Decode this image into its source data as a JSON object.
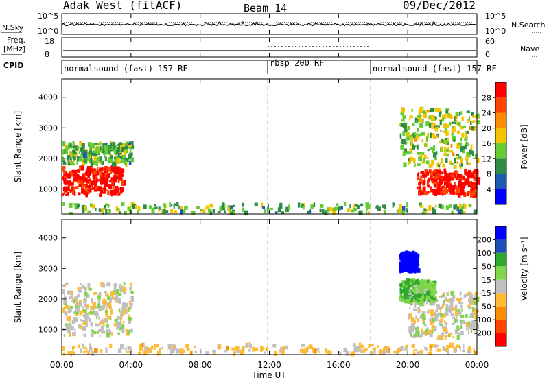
{
  "header": {
    "station": "Adak West (fitACF)",
    "beam": "Beam 14",
    "date": "09/Dec/2012"
  },
  "top_panels": {
    "nsky_label": "N.Sky",
    "nsky_ticks": [
      "10^5",
      "10^0"
    ],
    "nsearch_label": "N.Search",
    "nsearch_ticks": [
      "10^5",
      "10^0"
    ],
    "freq_label_1": "Freq.",
    "freq_label_2": "[MHz]",
    "freq_ticks": [
      "18",
      "8"
    ],
    "nave_label": "Nave",
    "nave_ticks": [
      "60",
      "0"
    ],
    "cpid_label": "CPID",
    "cpid_segments": [
      {
        "label": "normalsound (fast) 157 RF",
        "start_hr": 0,
        "end_hr": 12
      },
      {
        "label": "rbsp 200 RF",
        "start_hr": 12,
        "end_hr": 18
      },
      {
        "label": "normalsound (fast) 157 RF",
        "start_hr": 18,
        "end_hr": 24
      }
    ]
  },
  "axes": {
    "ylabel": "Slant Range [km]",
    "yticks": [
      "4000",
      "3000",
      "2000",
      "1000"
    ],
    "xlabel": "Time UT",
    "xticks": [
      "00:00",
      "04:00",
      "08:00",
      "12:00",
      "16:00",
      "20:00",
      "00:00"
    ]
  },
  "power_colorbar": {
    "label": "Power [dB]",
    "ticks": [
      "28",
      "24",
      "20",
      "16",
      "12",
      "8",
      "4"
    ],
    "colors": [
      "#0000ff",
      "#1e5ab4",
      "#2d8c46",
      "#66cc33",
      "#f5c400",
      "#ff8c00",
      "#ff4500",
      "#ff0000"
    ]
  },
  "velocity_colorbar": {
    "label": "Velocity [m s⁻¹]",
    "ticks": [
      "200",
      "100",
      "50",
      "15",
      "-15",
      "-50",
      "-100",
      "-200"
    ],
    "colors": [
      "#ff0000",
      "#ff4500",
      "#ff8c00",
      "#ffbb33",
      "#c0c0c0",
      "#7fd64b",
      "#2ea82e",
      "#1e4fb4",
      "#0000ff"
    ]
  },
  "chart_data": {
    "type": "heatmap",
    "title": "Adak West (fitACF) Beam 14 09/Dec/2012",
    "xlabel": "Time UT",
    "ylabel": "Slant Range [km]",
    "xlim_hours": [
      0,
      24
    ],
    "ylim_km": [
      180,
      4600
    ],
    "grid": false,
    "panels": [
      {
        "name": "Power [dB]",
        "range": [
          0,
          30
        ],
        "regions": [
          {
            "t_start": 0.0,
            "t_end": 3.5,
            "r_min": 800,
            "r_max": 1700,
            "value": 28
          },
          {
            "t_start": 0.0,
            "t_end": 4.0,
            "r_min": 1800,
            "r_max": 2500,
            "value": 12
          },
          {
            "t_start": 20.5,
            "t_end": 24.0,
            "r_min": 800,
            "r_max": 1600,
            "value": 28
          },
          {
            "t_start": 19.5,
            "t_end": 24.0,
            "r_min": 1700,
            "r_max": 3600,
            "value": 14
          },
          {
            "t_start": 0.0,
            "t_end": 24.0,
            "r_min": 200,
            "r_max": 500,
            "value": 12
          }
        ]
      },
      {
        "name": "Velocity [m s-1]",
        "range": [
          -200,
          200
        ],
        "regions": [
          {
            "t_start": 0.0,
            "t_end": 4.0,
            "r_min": 800,
            "r_max": 2500,
            "value": 0
          },
          {
            "t_start": 20.0,
            "t_end": 24.0,
            "r_min": 700,
            "r_max": 2200,
            "value": 0
          },
          {
            "t_start": 19.5,
            "t_end": 21.5,
            "r_min": 1900,
            "r_max": 2600,
            "value": 60
          },
          {
            "t_start": 19.5,
            "t_end": 20.5,
            "r_min": 2900,
            "r_max": 3500,
            "value": 200
          },
          {
            "t_start": 0.0,
            "t_end": 24.0,
            "r_min": 200,
            "r_max": 500,
            "value": -30
          }
        ]
      }
    ],
    "nave_avg": 15,
    "freq_mhz_avg": 10.5
  }
}
